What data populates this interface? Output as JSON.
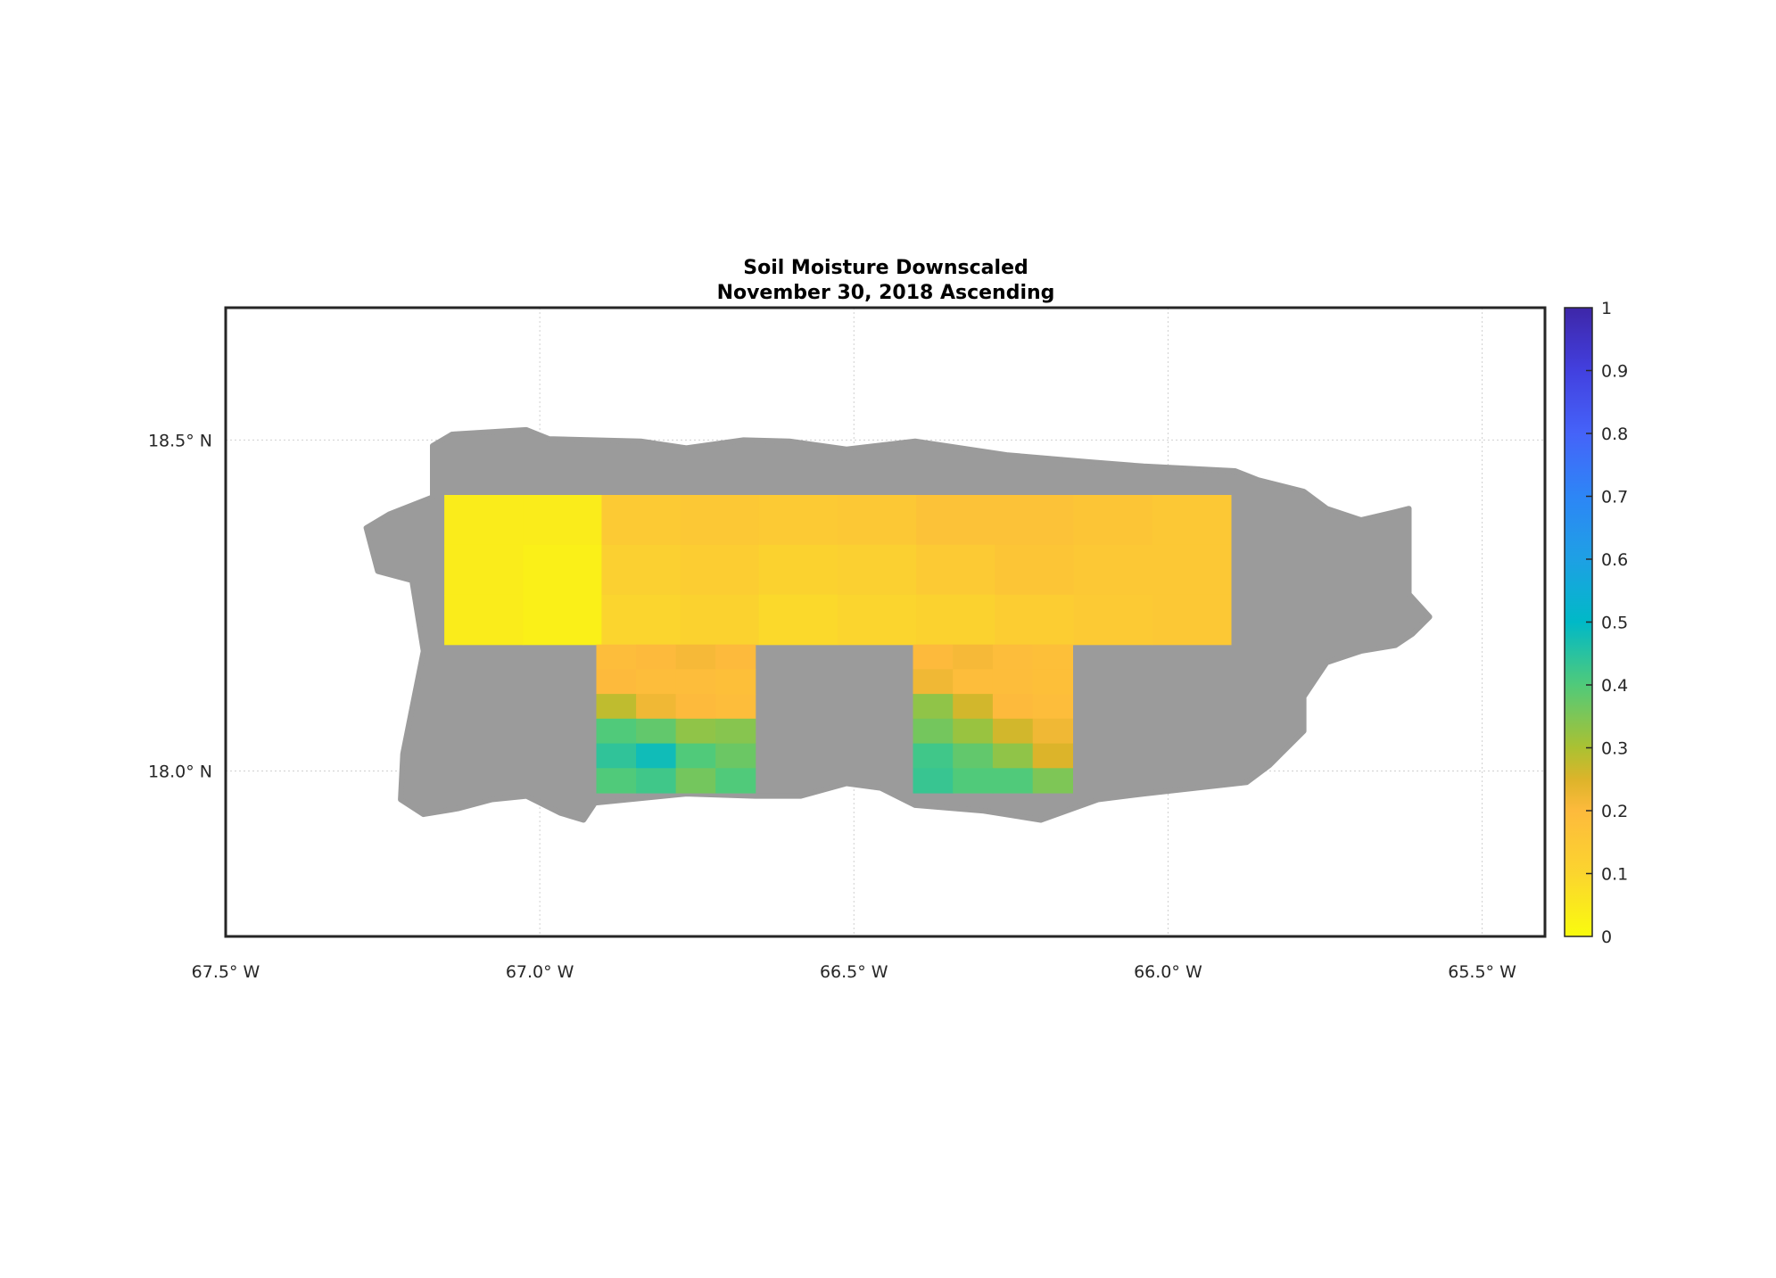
{
  "chart_data": {
    "type": "heatmap",
    "title": [
      "Soil Moisture Downscaled",
      "November 30, 2018 Ascending"
    ],
    "xlim": [
      -67.5,
      -65.4
    ],
    "ylim": [
      17.75,
      18.7
    ],
    "x_ticks": [
      -67.5,
      -67.0,
      -66.5,
      -66.0,
      -65.5
    ],
    "x_tick_labels": [
      "67.5° W",
      "67.0° W",
      "66.5° W",
      "66.0° W",
      "65.5° W"
    ],
    "y_ticks": [
      18.5,
      18.0
    ],
    "y_tick_labels": [
      "18.5° N",
      "18.0° N"
    ],
    "grid": true,
    "land_no_data_color": "#9b9b9b",
    "colorbar": {
      "position": "right",
      "range": [
        0,
        1
      ],
      "ticks": [
        0,
        0.1,
        0.2,
        0.3,
        0.4,
        0.5,
        0.6,
        0.7,
        0.8,
        0.9,
        1
      ],
      "tick_labels": [
        "0",
        "0.1",
        "0.2",
        "0.3",
        "0.4",
        "0.5",
        "0.6",
        "0.7",
        "0.8",
        "0.9",
        "1"
      ],
      "colormap": "parula (reversed)",
      "stops": [
        [
          0,
          "#f9fb0e"
        ],
        [
          0.1,
          "#fbd52e"
        ],
        [
          0.2,
          "#fdba3c"
        ],
        [
          0.25,
          "#dcb42a"
        ],
        [
          0.3,
          "#abc132"
        ],
        [
          0.4,
          "#50ca7a"
        ],
        [
          0.5,
          "#00b9c7"
        ],
        [
          0.6,
          "#1ea0e4"
        ],
        [
          0.7,
          "#2d86f6"
        ],
        [
          0.8,
          "#4563f9"
        ],
        [
          0.9,
          "#4240df"
        ],
        [
          1,
          "#3e26a8"
        ]
      ]
    },
    "tiles": [
      {
        "lon": [
          -67.152,
          -65.9
        ],
        "lat": [
          18.191,
          18.417
        ],
        "values": [
          [
            0.04,
            0.04,
            0.14,
            0.15,
            0.14,
            0.15,
            0.17,
            0.17,
            0.16,
            0.15
          ],
          [
            0.04,
            0.03,
            0.12,
            0.13,
            0.11,
            0.12,
            0.14,
            0.16,
            0.15,
            0.15
          ],
          [
            0.04,
            0.03,
            0.1,
            0.11,
            0.09,
            0.1,
            0.11,
            0.13,
            0.14,
            0.15
          ]
        ]
      },
      {
        "lon": [
          -66.91,
          -66.657
        ],
        "lat": [
          17.967,
          18.191
        ],
        "values": [
          [
            0.19,
            0.2,
            0.21,
            0.2
          ],
          [
            0.2,
            0.19,
            0.19,
            0.18
          ],
          [
            0.28,
            0.22,
            0.2,
            0.19
          ],
          [
            0.4,
            0.38,
            0.33,
            0.34
          ],
          [
            0.44,
            0.48,
            0.4,
            0.37
          ],
          [
            0.4,
            0.42,
            0.36,
            0.4
          ]
        ]
      },
      {
        "lon": [
          -66.406,
          -66.152
        ],
        "lat": [
          17.967,
          18.191
        ],
        "values": [
          [
            0.2,
            0.21,
            0.19,
            0.18
          ],
          [
            0.22,
            0.19,
            0.19,
            0.18
          ],
          [
            0.33,
            0.26,
            0.2,
            0.19
          ],
          [
            0.36,
            0.32,
            0.26,
            0.22
          ],
          [
            0.42,
            0.38,
            0.33,
            0.25
          ],
          [
            0.43,
            0.4,
            0.4,
            0.35
          ]
        ]
      }
    ]
  }
}
